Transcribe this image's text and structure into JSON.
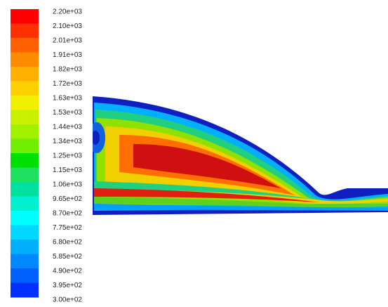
{
  "colorbar": {
    "labels": [
      "2.20e+03",
      "2.10e+03",
      "2.01e+03",
      "1.91e+03",
      "1.82e+03",
      "1.72e+03",
      "1.63e+03",
      "1.53e+03",
      "1.44e+03",
      "1.34e+03",
      "1.25e+03",
      "1.15e+03",
      "1.06e+03",
      "9.65e+02",
      "8.70e+02",
      "7.75e+02",
      "6.80e+02",
      "5.85e+02",
      "4.90e+02",
      "3.95e+02",
      "3.00e+02"
    ]
  }
}
